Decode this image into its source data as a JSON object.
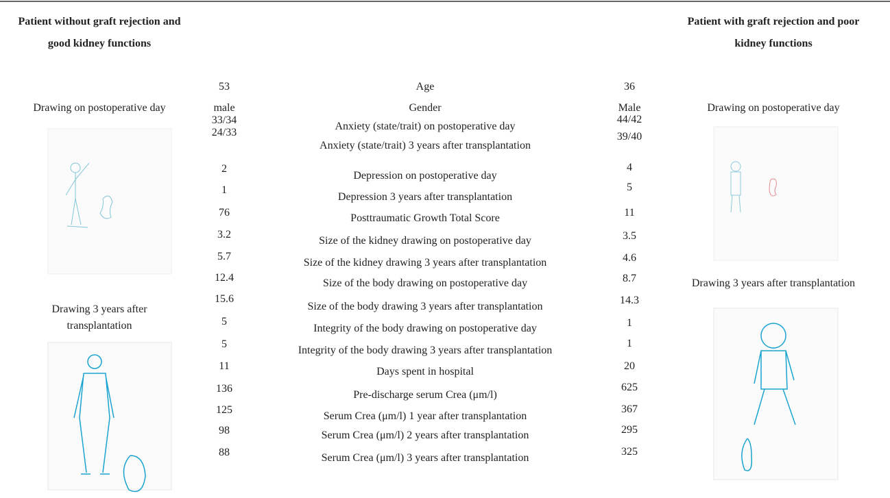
{
  "left": {
    "title": "Patient without graft rejection and good kidney functions",
    "caption_1": "Drawing on postoperative day",
    "caption_2": "Drawing 3 years after transplantation"
  },
  "right": {
    "title": "Patient with graft rejection and poor kidney functions",
    "caption_1": "Drawing on postoperative day",
    "caption_2": "Drawing 3 years after transplantation"
  },
  "rows": [
    {
      "left": 53,
      "label": "Age",
      "right": 36
    },
    {
      "left": "male",
      "label": "Gender",
      "right": "Male"
    },
    {
      "left": "33/34",
      "label": "Anxiety (state/trait) on postoperative day",
      "right": "44/42"
    },
    {
      "left": "24/33",
      "label": "Anxiety (state/trait) 3 years after transplantation",
      "right": "39/40"
    },
    {
      "left": 2,
      "label": "Depression on postoperative day",
      "right": 4
    },
    {
      "left": 1,
      "label": "Depression 3 years after transplantation",
      "right": 5
    },
    {
      "left": 76,
      "label": "Posttraumatic Growth Total Score",
      "right": 11
    },
    {
      "left": 3.2,
      "label": "Size of the kidney drawing on postoperative day",
      "right": 3.5
    },
    {
      "left": 5.7,
      "label": "Size of the kidney drawing 3 years after transplantation",
      "right": 4.6
    },
    {
      "left": 12.4,
      "label": "Size of the body drawing on postoperative day",
      "right": 8.7
    },
    {
      "left": 15.6,
      "label": "Size of the body drawing 3 years after transplantation",
      "right": 14.3
    },
    {
      "left": 5,
      "label": "Integrity of the body drawing on postoperative day",
      "right": 1
    },
    {
      "left": 5,
      "label": "Integrity of the body drawing 3 years after transplantation",
      "right": 1
    },
    {
      "left": 11,
      "label": "Days spent in hospital",
      "right": 20
    },
    {
      "left": 136,
      "label": "Pre-discharge serum Crea (μm/l)",
      "right": 625
    },
    {
      "left": 125,
      "label": "Serum Crea (μm/l) 1 year after transplantation",
      "right": 367
    },
    {
      "left": 98,
      "label": "Serum Crea (μm/l) 2 years after transplantation",
      "right": 295
    },
    {
      "left": 88,
      "label": "Serum Crea (μm/l) 3 years after transplantation",
      "right": 325
    }
  ]
}
